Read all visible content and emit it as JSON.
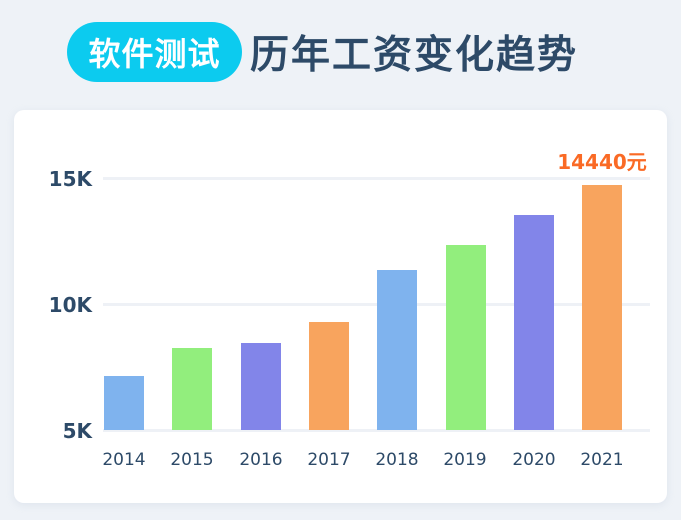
{
  "header": {
    "badge": "软件测试",
    "title": "历年工资变化趋势"
  },
  "colors": {
    "background": "#eef2f7",
    "badge": "#0ccbef",
    "title": "#2d4a68",
    "highlight_label": "#fa6a25",
    "bar_blue": "#7fb3ee",
    "bar_green": "#92ee7d",
    "bar_purple": "#8285e9",
    "bar_orange": "#f8a45e"
  },
  "chart_data": {
    "type": "bar",
    "title": "软件测试 历年工资变化趋势",
    "xlabel": "",
    "ylabel": "",
    "categories": [
      "2014",
      "2015",
      "2016",
      "2017",
      "2018",
      "2019",
      "2020",
      "2021"
    ],
    "values": [
      7150,
      8250,
      8450,
      9300,
      11350,
      12350,
      13550,
      14440
    ],
    "bar_colors": [
      "#7fb3ee",
      "#92ee7d",
      "#8285e9",
      "#f8a45e",
      "#7fb3ee",
      "#92ee7d",
      "#8285e9",
      "#f8a45e"
    ],
    "yticks": [
      "5K",
      "10K",
      "15K"
    ],
    "ytick_values": [
      5000,
      10000,
      15000
    ],
    "ylim": [
      5000,
      15000
    ],
    "grid": true,
    "legend": null,
    "annotations": [
      {
        "category": "2021",
        "text": "14440元"
      }
    ]
  },
  "axis": {
    "y_labels": [
      "15K",
      "10K",
      "5K"
    ],
    "x_labels": [
      "2014",
      "2015",
      "2016",
      "2017",
      "2018",
      "2019",
      "2020",
      "2021"
    ]
  },
  "annotation": {
    "label": "14440元"
  }
}
